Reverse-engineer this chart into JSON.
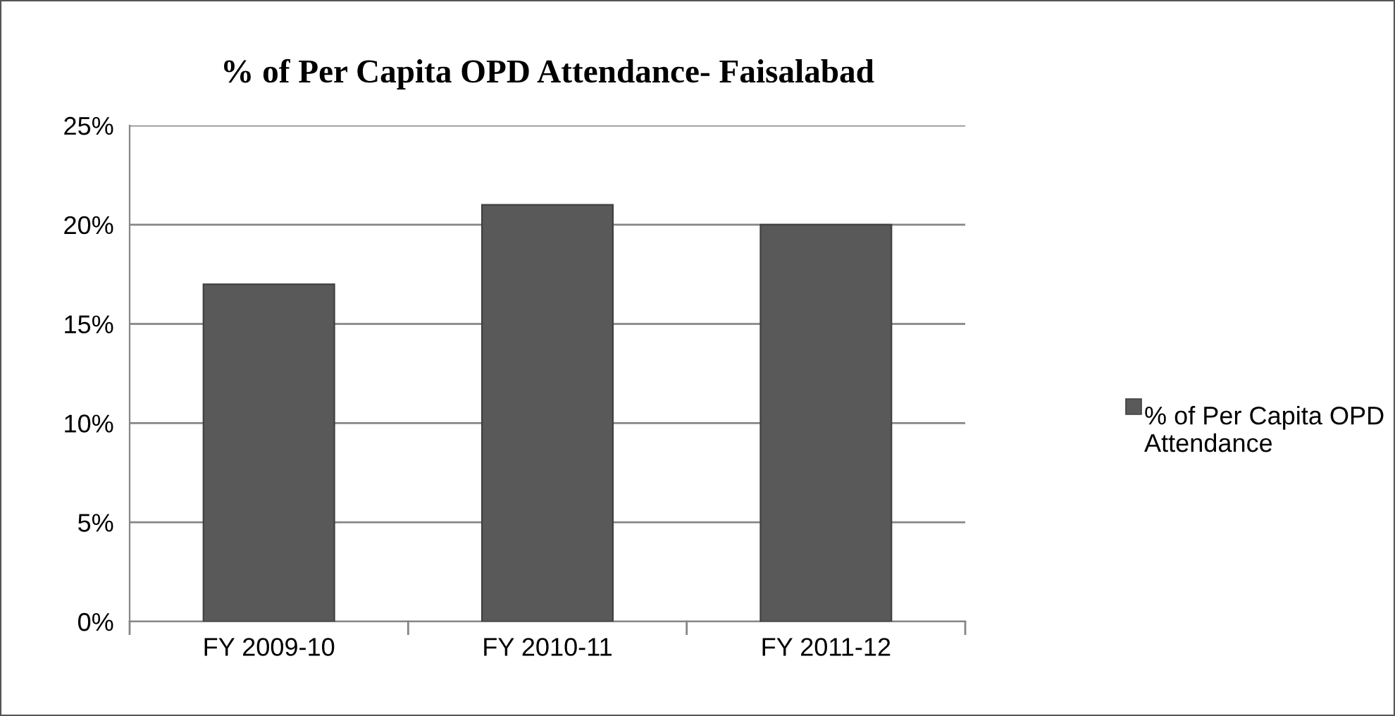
{
  "chart_data": {
    "type": "bar",
    "title": "% of Per Capita OPD Attendance- Faisalabad",
    "categories": [
      "FY 2009-10",
      "FY 2010-11",
      "FY 2011-12"
    ],
    "series": [
      {
        "name": "% of Per Capita OPD Attendance",
        "color": "#595959",
        "values": [
          17,
          21,
          20
        ]
      }
    ],
    "ylim": [
      0,
      25
    ],
    "yticks": [
      {
        "value": 0,
        "label": "0%"
      },
      {
        "value": 5,
        "label": "5%"
      },
      {
        "value": 10,
        "label": "10%"
      },
      {
        "value": 15,
        "label": "15%"
      },
      {
        "value": 20,
        "label": "20%"
      },
      {
        "value": 25,
        "label": "25%"
      }
    ],
    "grid": "y",
    "legend": "right"
  }
}
